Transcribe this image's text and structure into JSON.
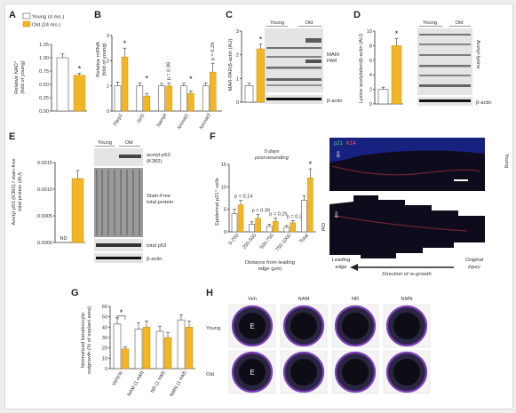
{
  "colors": {
    "young": "#ffffff",
    "old": "#f2b625",
    "background": "#eeeef0"
  },
  "legend": {
    "young": "Young (4 mo.)",
    "old": "Old (24 mo.)"
  },
  "panels": {
    "A": {
      "letter": "A",
      "ylabel_1": "Relative NAD⁺",
      "ylabel_2": "(fold of young)",
      "star": "*"
    },
    "B": {
      "letter": "B",
      "ylabel_1": "Relative mRNA",
      "ylabel_2": "(fold of young)"
    },
    "C": {
      "letter": "C",
      "ylabel": "MAR-PAR/β-actin (AU)",
      "header_young": "Young",
      "header_old": "Old",
      "side_label_1": "MAR/",
      "side_label_2": "PAR",
      "actin": "β-actin",
      "star": "*"
    },
    "D": {
      "letter": "D",
      "ylabel": "Lysine acetylation/β-actin (AU)",
      "header_young": "Young",
      "header_old": "Old",
      "side_label": "Acetyl-lysine",
      "actin": "β-actin",
      "star": "*"
    },
    "E": {
      "letter": "E",
      "ylabel_1": "Acetyl p53 (K382) / stain-free",
      "ylabel_2": "total protein (AU)",
      "nd": "ND",
      "header_young": "Young",
      "header_old": "Old",
      "label_acetyl_1": "acetyl-p53",
      "label_acetyl_2": "(K382)",
      "label_stain_1": "Stain-Free",
      "label_stain_2": "total protein",
      "label_total": "total p53",
      "actin": "β-actin"
    },
    "F": {
      "letter": "F",
      "subtitle_1": "5 days",
      "subtitle_2": "post-wounding",
      "ylabel": "Epidermal p21⁺ cells",
      "xlabel_1": "Distance from leading",
      "xlabel_2": "edge (μm)",
      "star": "*",
      "stain_p21": "p21",
      "stain_k14": "K14",
      "row_young": "Young",
      "row_old": "Old",
      "arrow_left_1": "Leading",
      "arrow_left_2": "edge",
      "arrow_mid": "Direction of re-growth",
      "arrow_right_1": "Original",
      "arrow_right_2": "injury"
    },
    "G": {
      "letter": "G",
      "ylabel_1": "Normalized keratinocyte",
      "ylabel_2": "outgrowth (% of explant area)",
      "star": "*"
    },
    "H": {
      "letter": "H",
      "columns": [
        "Veh",
        "NAM",
        "NR",
        "NMN"
      ],
      "rows": [
        "Young",
        "Old"
      ],
      "explant": "E"
    }
  },
  "chart_data": [
    {
      "panel": "A",
      "type": "bar",
      "categories": [
        "Young (4 mo.)",
        "Old (24 mo.)"
      ],
      "values": [
        1.0,
        0.67
      ],
      "errors": [
        0.07,
        0.04
      ],
      "ylim": [
        0,
        1.25
      ],
      "yticks": [
        "0.00",
        "0.25",
        "0.50",
        "0.75",
        "1.00",
        "1.25"
      ],
      "ylabel": "Relative NAD⁺ (fold of young)"
    },
    {
      "panel": "B",
      "type": "bar",
      "categories": [
        "Parp1",
        "Sirt1",
        "Nampt",
        "Nmnat1",
        "Nmnat3"
      ],
      "series": [
        {
          "name": "Young (4 mo.)",
          "values": [
            1.0,
            1.0,
            1.0,
            1.0,
            1.0
          ]
        },
        {
          "name": "Old (24 mo.)",
          "values": [
            2.15,
            0.6,
            1.0,
            0.7,
            1.55
          ]
        }
      ],
      "errors": [
        [
          0.15,
          0.12,
          0.1,
          0.1,
          0.12
        ],
        [
          0.35,
          0.1,
          0.12,
          0.1,
          0.35
        ]
      ],
      "annotations": [
        "*",
        "*",
        "p = 0.99",
        "*",
        "p = 0.29"
      ],
      "ylim": [
        0,
        3
      ],
      "yticks": [
        "0",
        "1",
        "2",
        "3"
      ],
      "ylabel": "Relative mRNA (fold of young)"
    },
    {
      "panel": "C",
      "type": "bar",
      "categories": [
        "Young (4 mo.)",
        "Old (24 mo.)"
      ],
      "values": [
        0.7,
        2.25
      ],
      "errors": [
        0.1,
        0.2
      ],
      "ylim": [
        0,
        3
      ],
      "yticks": [
        "0",
        "1",
        "2",
        "3"
      ],
      "ylabel": "MAR-PAR/β-actin (AU)"
    },
    {
      "panel": "D",
      "type": "bar",
      "categories": [
        "Young (4 mo.)",
        "Old (24 mo.)"
      ],
      "values": [
        2.0,
        8.0
      ],
      "errors": [
        0.3,
        1.0
      ],
      "ylim": [
        0,
        10
      ],
      "yticks": [
        "0",
        "2",
        "4",
        "6",
        "8",
        "10"
      ],
      "ylabel": "Lysine acetylation/β-actin (AU)"
    },
    {
      "panel": "E",
      "type": "bar",
      "categories": [
        "Young (4 mo.)",
        "Old (24 mo.)"
      ],
      "values": [
        0,
        0.0012
      ],
      "errors": [
        0,
        0.00015
      ],
      "ylim": [
        0,
        0.0015
      ],
      "yticks": [
        "0.0000",
        "0.0005",
        "0.0010",
        "0.0015"
      ],
      "ylabel": "Acetyl p53 (K382) / stain-free total protein (AU)"
    },
    {
      "panel": "F",
      "type": "bar",
      "categories": [
        "0-250",
        "250-500",
        "500-750",
        "750-1000",
        "Total"
      ],
      "series": [
        {
          "name": "Young (4 mo.)",
          "values": [
            4.0,
            1.7,
            1.2,
            1.0,
            7.0
          ]
        },
        {
          "name": "Old (24 mo.)",
          "values": [
            6.0,
            3.0,
            2.3,
            2.0,
            12.0
          ]
        }
      ],
      "errors": [
        [
          1.0,
          0.5,
          0.5,
          0.4,
          1.0
        ],
        [
          1.0,
          0.8,
          0.8,
          0.5,
          2.0
        ]
      ],
      "annotations": [
        "p = 0.14",
        "p = 0.39",
        "p = 0.25",
        "p = 0.25",
        "*"
      ],
      "ylim": [
        0,
        15
      ],
      "yticks": [
        "0",
        "5",
        "10",
        "15"
      ],
      "ylabel": "Epidermal p21⁺ cells",
      "xlabel": "Distance from leading edge (μm)"
    },
    {
      "panel": "G",
      "type": "bar",
      "categories": [
        "Vehicle",
        "NAM (1 mM)",
        "NR (1 mM)",
        "NMN (1 mM)"
      ],
      "series": [
        {
          "name": "Young (4 mo.)",
          "values": [
            43,
            38,
            36,
            47
          ]
        },
        {
          "name": "Old (24 mo.)",
          "values": [
            19,
            40,
            30,
            40
          ]
        }
      ],
      "errors": [
        [
          6,
          6,
          5,
          5
        ],
        [
          2,
          6,
          5,
          6
        ]
      ],
      "annotations": [
        "*",
        "",
        "",
        ""
      ],
      "ylim": [
        0,
        60
      ],
      "yticks": [
        "0",
        "10",
        "20",
        "30",
        "40",
        "50",
        "60"
      ],
      "ylabel": "Normalized keratinocyte outgrowth (% of explant area)"
    }
  ]
}
